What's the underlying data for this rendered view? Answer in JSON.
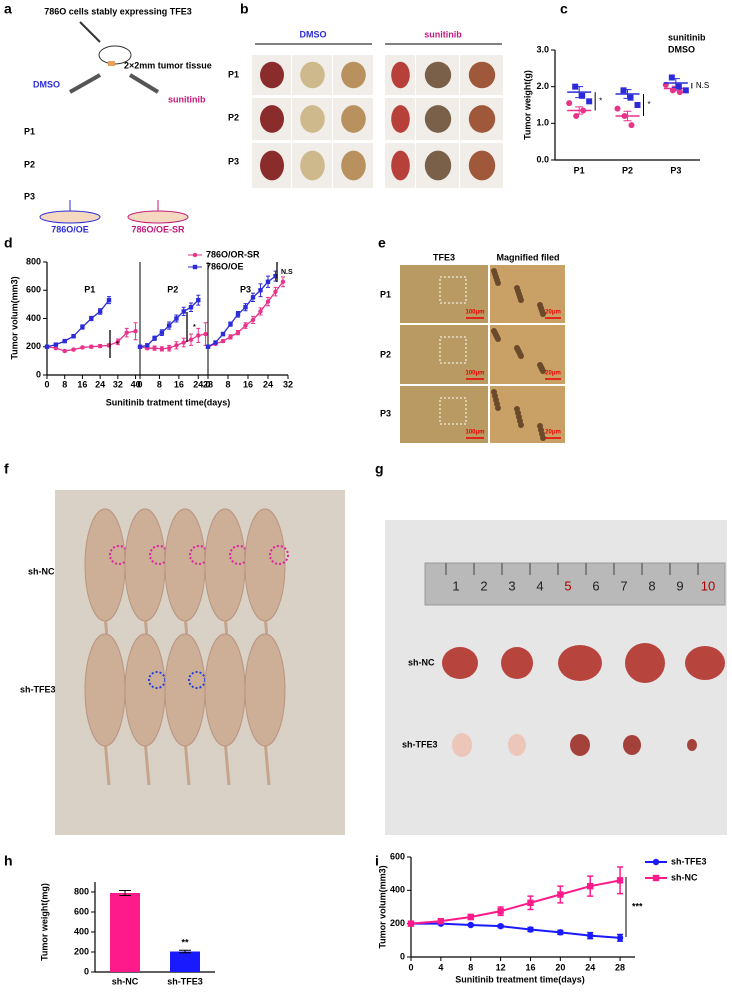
{
  "panel_labels": [
    "a",
    "b",
    "c",
    "d",
    "e",
    "f",
    "g",
    "h",
    "i"
  ],
  "diagram_a": {
    "title": "786O cells stably expressing TFE3",
    "tissue": "2×2mm tumor tissue",
    "left_arm": "DMSO",
    "right_arm": "sunitinib",
    "passages": [
      "P1",
      "P2",
      "P3"
    ],
    "left_result": "786O/OE",
    "right_result": "786O/OE-SR"
  },
  "photo_b": {
    "columns": [
      "DMSO",
      "sunitinib"
    ],
    "rows": [
      "P1",
      "P2",
      "P3"
    ]
  },
  "photo_e": {
    "columns": [
      "TFE3",
      "Magnified filed"
    ],
    "rows": [
      "P1",
      "P2",
      "P3"
    ],
    "scale_bars": [
      "100μm",
      "20μm"
    ]
  },
  "photo_f": {
    "rows": [
      "sh-NC",
      "sh-TFE3"
    ]
  },
  "photo_g": {
    "rows": [
      "sh-NC",
      "sh-TFE3"
    ],
    "ruler": [
      1,
      2,
      3,
      4,
      5,
      6,
      7,
      8,
      9,
      10
    ]
  },
  "chart_data": [
    {
      "type": "dot",
      "ylabel": "Tumor weight(g)",
      "categories": [
        "P1",
        "P2",
        "P3"
      ],
      "ylim": [
        0,
        3
      ],
      "yticks": [
        {
          "value": 0,
          "label": "0.0"
        },
        {
          "value": 1,
          "label": "1.0"
        },
        {
          "value": 2,
          "label": "2.0"
        },
        {
          "value": 3,
          "label": "3.0"
        }
      ],
      "series": [
        {
          "name": "sunitinib",
          "color": "#e8338a",
          "marker": "circle",
          "values": [
            [
              1.55,
              1.2,
              1.35
            ],
            [
              1.4,
              1.2,
              0.95
            ],
            [
              2.05,
              1.9,
              1.85
            ]
          ],
          "means": [
            1.35,
            1.2,
            1.95
          ],
          "sem": [
            0.1,
            0.13,
            0.06
          ]
        },
        {
          "name": "DMSO",
          "color": "#2b2bd9",
          "marker": "square",
          "values": [
            [
              2.0,
              1.75,
              1.6
            ],
            [
              1.9,
              1.7,
              1.5
            ],
            [
              2.25,
              2.0,
              1.9
            ]
          ],
          "means": [
            1.85,
            1.8,
            2.1
          ],
          "sem": [
            0.15,
            0.12,
            0.12
          ]
        }
      ],
      "annotations": [
        "*",
        "*",
        "N.S"
      ]
    },
    {
      "type": "line-panels",
      "ylabel": "Tumor volum(mm3)",
      "xlabel": "Sunitinib tratment time(days)",
      "ylim": [
        0,
        800
      ],
      "yticks": [
        0,
        200,
        400,
        600,
        800
      ],
      "legend": [
        {
          "name": "786O/OR-SR",
          "color": "#e8338a",
          "marker": "circle"
        },
        {
          "name": "786O/OE",
          "color": "#2b2bd9",
          "marker": "square"
        }
      ],
      "panels": [
        {
          "label": "P1",
          "xlim": [
            0,
            42
          ],
          "xticks": [
            0,
            8,
            16,
            24,
            32,
            40
          ],
          "annotation": "*",
          "series": [
            {
              "x": [
                0,
                4,
                8,
                12,
                16,
                20,
                24,
                28,
                32,
                36,
                40
              ],
              "values": [
                200,
                190,
                170,
                180,
                195,
                200,
                205,
                210,
                235,
                300,
                310
              ],
              "errors": [
                5,
                5,
                8,
                8,
                8,
                10,
                10,
                10,
                20,
                30,
                60
              ]
            },
            {
              "x": [
                0,
                4,
                8,
                12,
                16,
                20,
                24,
                28
              ],
              "values": [
                200,
                215,
                240,
                275,
                340,
                400,
                450,
                530
              ],
              "errors": [
                5,
                8,
                10,
                12,
                15,
                15,
                20,
                25
              ]
            }
          ]
        },
        {
          "label": "P2",
          "xlim": [
            0,
            28
          ],
          "xticks": [
            0,
            8,
            16,
            24,
            28
          ],
          "annotation": "*",
          "series": [
            {
              "x": [
                0,
                3,
                6,
                9,
                12,
                15,
                18,
                21,
                24,
                27
              ],
              "values": [
                200,
                190,
                190,
                185,
                190,
                210,
                230,
                250,
                280,
                290
              ],
              "errors": [
                5,
                10,
                15,
                15,
                20,
                25,
                30,
                40,
                50,
                80
              ]
            },
            {
              "x": [
                0,
                3,
                6,
                9,
                12,
                15,
                18,
                21,
                24
              ],
              "values": [
                200,
                210,
                260,
                300,
                350,
                400,
                450,
                480,
                530
              ],
              "errors": [
                5,
                10,
                15,
                20,
                25,
                25,
                30,
                30,
                35
              ]
            }
          ]
        },
        {
          "label": "P3",
          "xlim": [
            0,
            32
          ],
          "xticks": [
            0,
            8,
            16,
            24,
            32
          ],
          "annotation": "N.S",
          "series": [
            {
              "x": [
                0,
                3,
                6,
                9,
                12,
                15,
                18,
                21,
                24,
                27,
                30
              ],
              "values": [
                200,
                220,
                240,
                270,
                300,
                350,
                390,
                450,
                520,
                590,
                660
              ],
              "errors": [
                5,
                8,
                10,
                15,
                15,
                20,
                25,
                25,
                30,
                30,
                35
              ]
            },
            {
              "x": [
                0,
                3,
                6,
                9,
                12,
                15,
                18,
                21,
                24,
                27
              ],
              "values": [
                200,
                230,
                290,
                360,
                430,
                480,
                550,
                600,
                660,
                700
              ],
              "errors": [
                5,
                10,
                12,
                15,
                20,
                25,
                30,
                45,
                40,
                35
              ]
            }
          ]
        }
      ]
    },
    {
      "type": "bar",
      "ylabel": "Tumor weight(mg)",
      "categories": [
        "sh-NC",
        "sh-TFE3"
      ],
      "values": [
        790,
        205
      ],
      "errors": [
        25,
        12
      ],
      "colors": [
        "#ff1a8c",
        "#1a1aff"
      ],
      "ylim": [
        0,
        900
      ],
      "yticks": [
        0,
        200,
        400,
        600,
        800
      ],
      "annotation": "**"
    },
    {
      "type": "line",
      "ylabel": "Tumor volum(mm3)",
      "xlabel": "Sunitinib treatment time(days)",
      "x": [
        0,
        4,
        8,
        12,
        16,
        20,
        24,
        28
      ],
      "xlim": [
        0,
        30
      ],
      "xticks": [
        0,
        4,
        8,
        12,
        16,
        20,
        24,
        28
      ],
      "ylim": [
        0,
        600
      ],
      "yticks": [
        0,
        200,
        400,
        600
      ],
      "series": [
        {
          "name": "sh-TFE3",
          "color": "#1a1aff",
          "marker": "circle",
          "values": [
            200,
            200,
            192,
            185,
            165,
            148,
            128,
            115
          ],
          "errors": [
            5,
            6,
            6,
            8,
            12,
            12,
            18,
            20
          ]
        },
        {
          "name": "sh-NC",
          "color": "#ff1a8c",
          "marker": "square",
          "values": [
            200,
            215,
            240,
            275,
            325,
            375,
            425,
            460
          ],
          "errors": [
            6,
            10,
            15,
            25,
            40,
            50,
            60,
            80
          ]
        }
      ],
      "annotation": "***"
    }
  ]
}
